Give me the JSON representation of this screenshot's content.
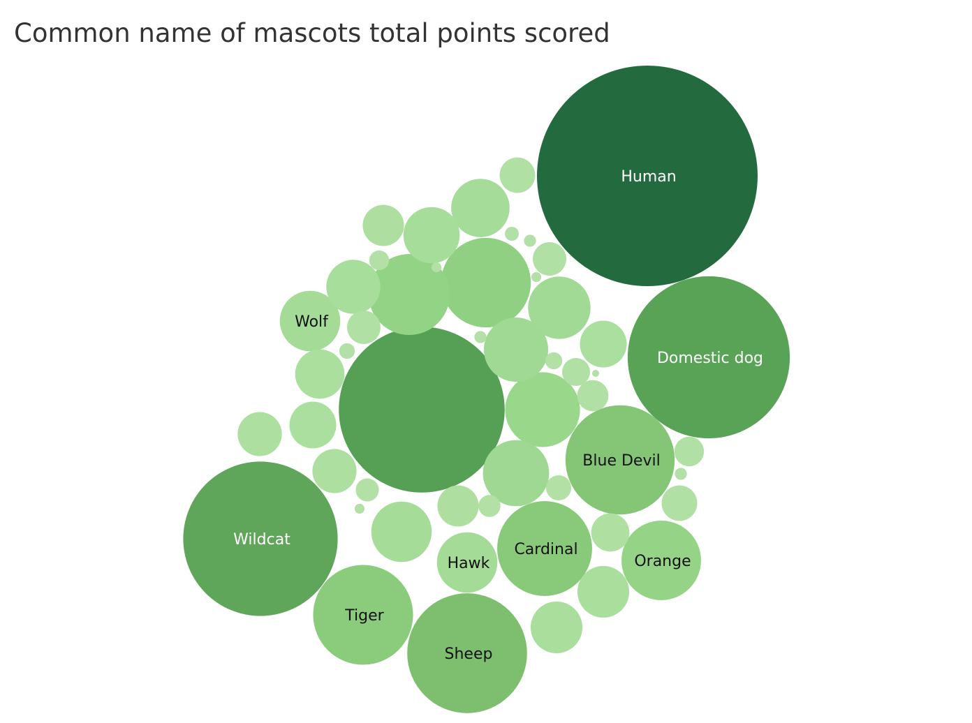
{
  "chart_data": {
    "type": "bubble",
    "title": "Common name of mascots total points scored",
    "color_scale": [
      "#b2e0a6",
      "#236b3e"
    ],
    "bubbles": [
      {
        "name": "Human",
        "label": "Human",
        "value": 100,
        "color": "#236b3e",
        "label_color": "#ffffff"
      },
      {
        "name": "Domestic dog",
        "label": "Domestic dog",
        "value": 54,
        "color": "#59a356",
        "label_color": "#ffffff"
      },
      {
        "name": "unlabeled",
        "label": "",
        "value": 56.5,
        "color": "#56a055",
        "label_color": "#ffffff"
      },
      {
        "name": "Wildcat",
        "label": "Wildcat",
        "value": 49,
        "color": "#60a65a",
        "label_color": "#ffffff"
      },
      {
        "name": "Blue Devil",
        "label": "Blue Devil",
        "value": 24.5,
        "color": "#84c675",
        "label_color": "#111111"
      },
      {
        "name": "Sheep",
        "label": "Sheep",
        "value": 29.5,
        "color": "#7dbf6e",
        "label_color": "#111111"
      },
      {
        "name": "Tiger",
        "label": "Tiger",
        "value": 20.5,
        "color": "#8bcc7c",
        "label_color": "#111111"
      },
      {
        "name": "Cardinal",
        "label": "Cardinal",
        "value": 18.5,
        "color": "#88c97a",
        "label_color": "#111111"
      },
      {
        "name": "Orange",
        "label": "Orange",
        "value": 13,
        "color": "#95d487",
        "label_color": "#111111"
      },
      {
        "name": "Hawk",
        "label": "Hawk",
        "value": 7.5,
        "color": "#a3db97",
        "label_color": "#111111"
      },
      {
        "name": "Wolf",
        "label": "Wolf",
        "value": 7.5,
        "color": "#a3db97",
        "label_color": "#111111"
      },
      {
        "name": "unlabeled",
        "label": "",
        "value": 16.5,
        "color": "#90d082"
      },
      {
        "name": "unlabeled",
        "label": "",
        "value": 13.5,
        "color": "#93d385"
      },
      {
        "name": "unlabeled",
        "label": "",
        "value": 11.5,
        "color": "#99d78b"
      },
      {
        "name": "unlabeled",
        "label": "",
        "value": 8,
        "color": "#a0da94"
      },
      {
        "name": "unlabeled",
        "label": "",
        "value": 8.5,
        "color": "#9fd993"
      },
      {
        "name": "unlabeled",
        "label": "",
        "value": 9,
        "color": "#9ed892"
      },
      {
        "name": "unlabeled",
        "label": "",
        "value": 7.5,
        "color": "#a4dc98"
      },
      {
        "name": "unlabeled",
        "label": "",
        "value": 7,
        "color": "#a5dc99"
      },
      {
        "name": "unlabeled",
        "label": "",
        "value": 6.5,
        "color": "#a6dd9a"
      },
      {
        "name": "unlabeled",
        "label": "",
        "value": 6,
        "color": "#a8de9c"
      },
      {
        "name": "unlabeled",
        "label": "",
        "value": 5.5,
        "color": "#a9de9d"
      },
      {
        "name": "unlabeled",
        "label": "",
        "value": 5.5,
        "color": "#a9de9d"
      },
      {
        "name": "unlabeled",
        "label": "",
        "value": 5,
        "color": "#aadf9e"
      },
      {
        "name": "unlabeled",
        "label": "",
        "value": 4.5,
        "color": "#abdf9f"
      },
      {
        "name": "unlabeled",
        "label": "",
        "value": 4.5,
        "color": "#abdf9f"
      },
      {
        "name": "unlabeled",
        "label": "",
        "value": 4,
        "color": "#addfa0"
      },
      {
        "name": "unlabeled",
        "label": "",
        "value": 4,
        "color": "#addfa0"
      },
      {
        "name": "unlabeled",
        "label": "",
        "value": 3.5,
        "color": "#aedfa1"
      },
      {
        "name": "unlabeled",
        "label": "",
        "value": 3.5,
        "color": "#aedfa1"
      },
      {
        "name": "unlabeled",
        "label": "",
        "value": 3,
        "color": "#afe0a2"
      },
      {
        "name": "unlabeled",
        "label": "",
        "value": 2.6,
        "color": "#b0e0a3"
      },
      {
        "name": "unlabeled",
        "label": "",
        "value": 2.6,
        "color": "#b0e0a3"
      },
      {
        "name": "unlabeled",
        "label": "",
        "value": 2.3,
        "color": "#b0e0a3"
      },
      {
        "name": "unlabeled",
        "label": "",
        "value": 2.3,
        "color": "#b0e0a3"
      },
      {
        "name": "unlabeled",
        "label": "",
        "value": 2,
        "color": "#b1e0a4"
      },
      {
        "name": "unlabeled",
        "label": "",
        "value": 1.8,
        "color": "#b1e0a4"
      },
      {
        "name": "unlabeled",
        "label": "",
        "value": 1.6,
        "color": "#b1e0a4"
      },
      {
        "name": "unlabeled",
        "label": "",
        "value": 1.3,
        "color": "#b2e0a5"
      },
      {
        "name": "unlabeled",
        "label": "",
        "value": 1.1,
        "color": "#b2e0a5"
      },
      {
        "name": "unlabeled",
        "label": "",
        "value": 1,
        "color": "#b2e0a5"
      },
      {
        "name": "unlabeled",
        "label": "",
        "value": 0.8,
        "color": "#b2e0a6"
      },
      {
        "name": "unlabeled",
        "label": "",
        "value": 0.6,
        "color": "#b2e0a6"
      },
      {
        "name": "unlabeled",
        "label": "",
        "value": 0.5,
        "color": "#b2e0a6"
      },
      {
        "name": "unlabeled",
        "label": "",
        "value": 0.4,
        "color": "#b2e0a6"
      },
      {
        "name": "unlabeled",
        "label": "",
        "value": 0.3,
        "color": "#b2e0a6"
      },
      {
        "name": "unlabeled",
        "label": "",
        "value": 0.3,
        "color": "#b2e0a6"
      },
      {
        "name": "unlabeled",
        "label": "",
        "value": 0.3,
        "color": "#b2e0a6"
      },
      {
        "name": "unlabeled",
        "label": "",
        "value": 0.2,
        "color": "#b2e0a6"
      },
      {
        "name": "unlabeled",
        "label": "",
        "value": 0.2,
        "color": "#b2e0a6"
      },
      {
        "name": "unlabeled",
        "label": "",
        "value": 0.2,
        "color": "#b2e0a6"
      },
      {
        "name": "unlabeled",
        "label": "",
        "value": 0.1,
        "color": "#b2e0a6"
      }
    ]
  }
}
